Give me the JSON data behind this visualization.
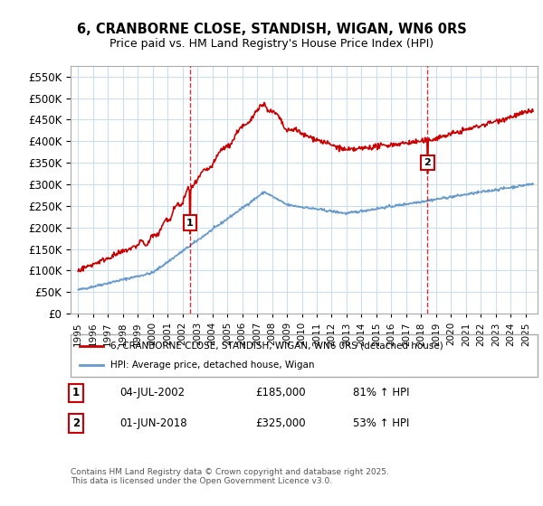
{
  "title_line1": "6, CRANBORNE CLOSE, STANDISH, WIGAN, WN6 0RS",
  "title_line2": "Price paid vs. HM Land Registry's House Price Index (HPI)",
  "background_color": "#ffffff",
  "plot_bg_color": "#ffffff",
  "grid_color": "#ccddee",
  "sale1_date": "04-JUL-2002",
  "sale1_price": 185000,
  "sale1_hpi": "81% ↑ HPI",
  "sale2_date": "01-JUN-2018",
  "sale2_price": 325000,
  "sale2_hpi": "53% ↑ HPI",
  "red_line_color": "#cc0000",
  "blue_line_color": "#6699cc",
  "dashed_line_color": "#cc0000",
  "legend_label1": "6, CRANBORNE CLOSE, STANDISH, WIGAN, WN6 0RS (detached house)",
  "legend_label2": "HPI: Average price, detached house, Wigan",
  "footnote": "Contains HM Land Registry data © Crown copyright and database right 2025.\nThis data is licensed under the Open Government Licence v3.0.",
  "ylim_min": 0,
  "ylim_max": 575000,
  "sale1_x": 2002.5,
  "sale2_x": 2018.42
}
